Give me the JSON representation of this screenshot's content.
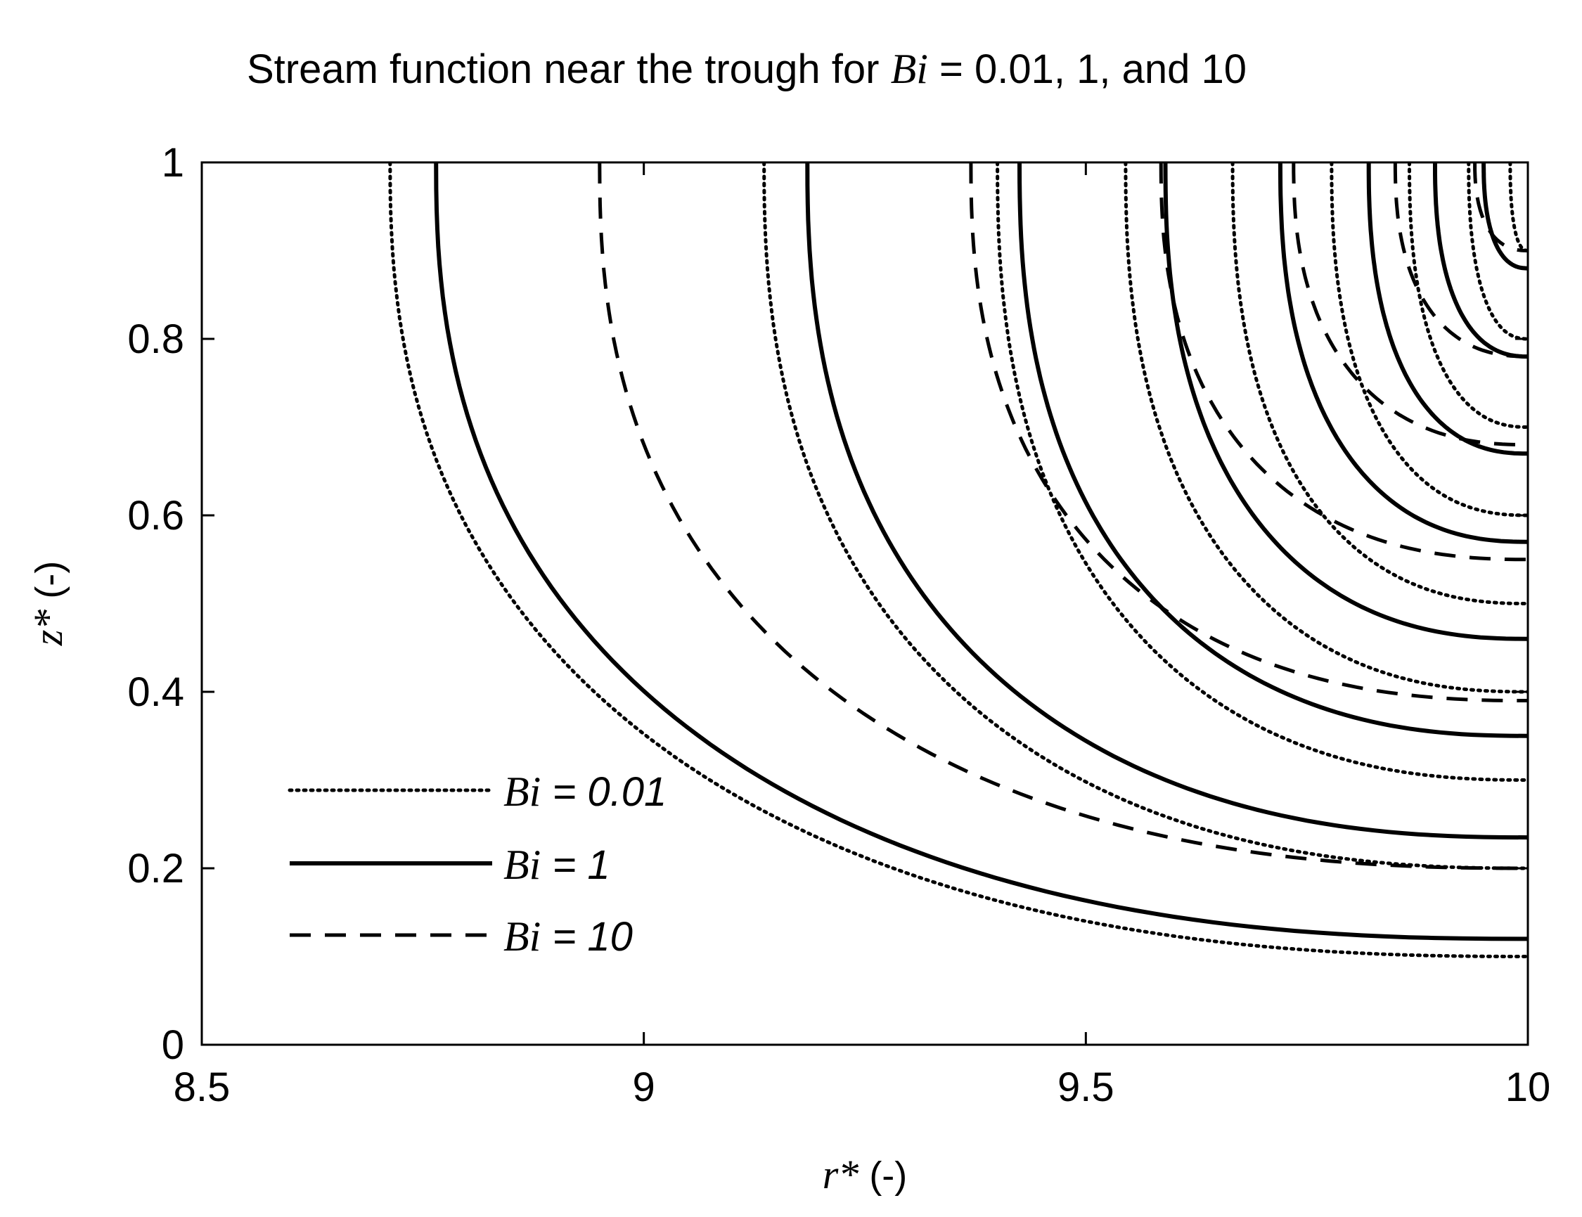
{
  "chart_data": {
    "type": "line",
    "title": {
      "prefix": "Stream function near the trough for ",
      "symbol": "Bi",
      "suffix": "  = 0.01, 1, and 10"
    },
    "xlabel": {
      "symbol": "r*",
      "unit": " (-)"
    },
    "ylabel": {
      "symbol": "z*",
      "unit": " (-)"
    },
    "xlim": [
      8.5,
      10
    ],
    "ylim": [
      0,
      1
    ],
    "xticks": [
      8.5,
      9,
      9.5,
      10
    ],
    "xtick_labels": [
      "8.5",
      "9",
      "9.5",
      "10"
    ],
    "yticks": [
      0,
      0.2,
      0.4,
      0.6,
      0.8,
      1
    ],
    "ytick_labels": [
      "0",
      "0.2",
      "0.4",
      "0.6",
      "0.8",
      "1"
    ],
    "legend_position": "lower-left",
    "grid": false,
    "series": [
      {
        "name": "Bi = 0.01",
        "legend_symbol": "Bi",
        "legend_value": " = 0.01",
        "style": "dotted",
        "curves_x_at_top": [
          8.713,
          9.136,
          9.4,
          9.545,
          9.666,
          9.778,
          9.866,
          9.933,
          9.98
        ],
        "curves_z_at_right": [
          0.1,
          0.2,
          0.3,
          0.4,
          0.5,
          0.6,
          0.7,
          0.8,
          0.9
        ]
      },
      {
        "name": "Bi = 1",
        "legend_symbol": "Bi",
        "legend_value": " = 1",
        "style": "solid",
        "curves_x_at_top": [
          8.765,
          9.185,
          9.425,
          9.59,
          9.72,
          9.82,
          9.895,
          9.95
        ],
        "curves_z_at_right": [
          0.12,
          0.235,
          0.35,
          0.46,
          0.57,
          0.67,
          0.78,
          0.88
        ]
      },
      {
        "name": "Bi = 10",
        "legend_symbol": "Bi",
        "legend_value": " = 10",
        "style": "dashed",
        "curves_x_at_top": [
          8.95,
          9.37,
          9.585,
          9.735,
          9.85,
          9.94
        ],
        "curves_z_at_right": [
          0.2,
          0.39,
          0.55,
          0.68,
          0.78,
          0.9
        ]
      }
    ]
  }
}
